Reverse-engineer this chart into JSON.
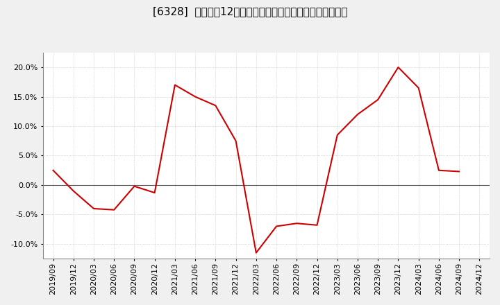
{
  "title": "[6328]  売上高の12か月移動合計の対前年同期増減率の推移",
  "line_color": "#cc0000",
  "background_color": "#f0f0f0",
  "plot_bg_color": "#ffffff",
  "grid_color": "#bbbbbb",
  "zero_line_color": "#555555",
  "x_labels": [
    "2019/09",
    "2019/12",
    "2020/03",
    "2020/06",
    "2020/09",
    "2020/12",
    "2021/03",
    "2021/06",
    "2021/09",
    "2021/12",
    "2022/03",
    "2022/06",
    "2022/09",
    "2022/12",
    "2023/03",
    "2023/06",
    "2023/09",
    "2023/12",
    "2024/03",
    "2024/06",
    "2024/09",
    "2024/12"
  ],
  "y_values": [
    2.5,
    -1.0,
    -4.0,
    -4.2,
    -0.2,
    -1.3,
    17.0,
    15.0,
    13.5,
    7.5,
    -11.5,
    -7.0,
    -6.5,
    -6.8,
    8.5,
    12.0,
    14.5,
    20.0,
    16.5,
    2.5,
    2.3,
    null
  ],
  "ylim": [
    -12.5,
    22.5
  ],
  "yticks": [
    -10.0,
    -5.0,
    0.0,
    5.0,
    10.0,
    15.0,
    20.0
  ],
  "title_fontsize": 11,
  "tick_fontsize": 8
}
